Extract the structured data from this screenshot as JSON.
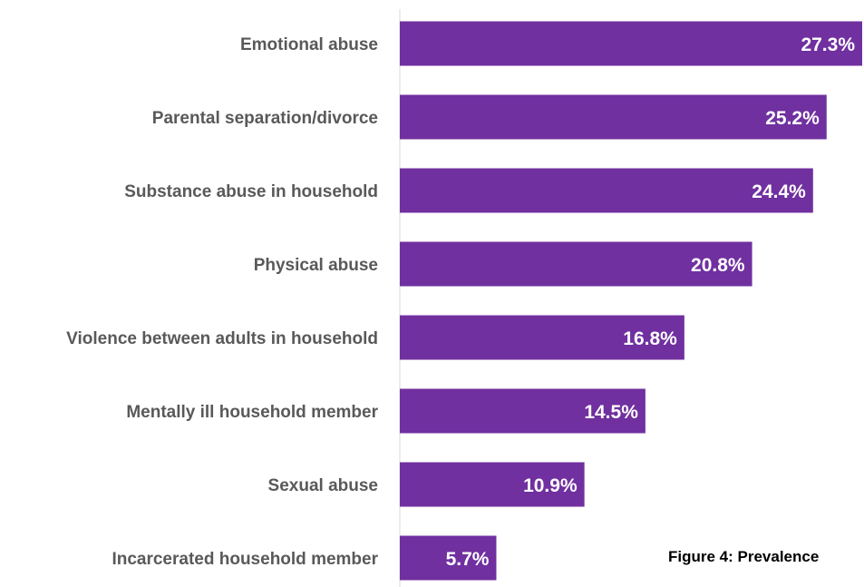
{
  "chart_data": {
    "type": "bar",
    "orientation": "horizontal",
    "categories": [
      "Emotional abuse",
      "Parental separation/divorce",
      "Substance abuse in household",
      "Physical abuse",
      "Violence between adults in household",
      "Mentally ill household member",
      "Sexual abuse",
      "Incarcerated household member"
    ],
    "values": [
      27.3,
      25.2,
      24.4,
      20.8,
      16.8,
      14.5,
      10.9,
      5.7
    ],
    "data_labels": [
      "27.3%",
      "25.2%",
      "24.4%",
      "20.8%",
      "16.8%",
      "14.5%",
      "10.9%",
      "5.7%"
    ],
    "value_unit": "%",
    "xlim": [
      0,
      27.3
    ],
    "grid": false,
    "bar_color": "#7030A0",
    "caption": "Figure 4: Prevalence"
  }
}
